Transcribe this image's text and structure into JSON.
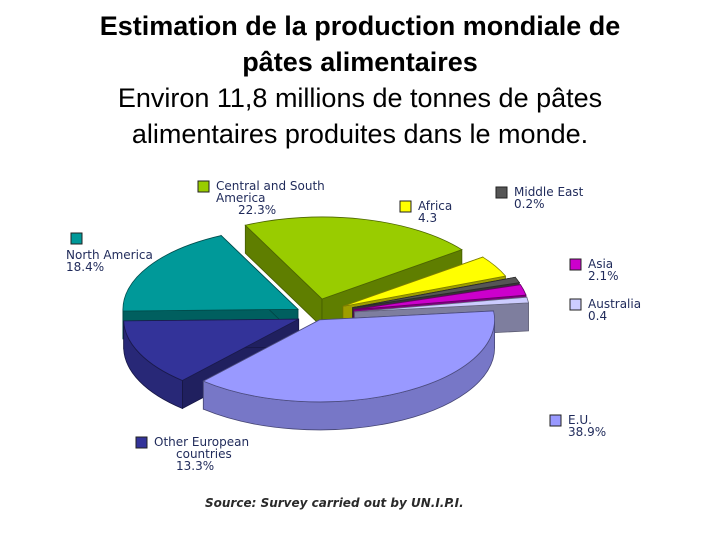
{
  "heading": {
    "title_line1": "Estimation de la production mondiale de",
    "title_line2": "pâtes alimentaires",
    "subtitle_line1": "Environ 11,8 millions de tonnes de pâtes",
    "subtitle_line2": "alimentaires produites dans le monde."
  },
  "chart_data": {
    "type": "pie",
    "style": "3d-exploded",
    "slices": [
      {
        "name": "Central and South America",
        "label_lines": [
          "Central and South",
          "America",
          "22.3%"
        ],
        "value": 22.3,
        "color": "#99cc00"
      },
      {
        "name": "Africa",
        "label_lines": [
          "Africa",
          "4.3"
        ],
        "value": 4.3,
        "color": "#ffff00"
      },
      {
        "name": "Middle East",
        "label_lines": [
          "Middle East",
          "0.2%"
        ],
        "value": 0.2,
        "color": "#555555"
      },
      {
        "name": "Asia",
        "label_lines": [
          "Asia",
          "2.1%"
        ],
        "value": 2.1,
        "color": "#cc00cc"
      },
      {
        "name": "Australia",
        "label_lines": [
          "Australia",
          "0.4"
        ],
        "value": 0.4,
        "color": "#ccccff"
      },
      {
        "name": "E.U.",
        "label_lines": [
          "E.U.",
          "38.9%"
        ],
        "value": 38.9,
        "color": "#9999ff"
      },
      {
        "name": "Other European countries",
        "label_lines": [
          "Other European",
          "countries",
          "13.3%"
        ],
        "value": 13.3,
        "color": "#333399"
      },
      {
        "name": "North America",
        "label_lines": [
          "North America",
          "18.4%"
        ],
        "value": 18.4,
        "color": "#009999"
      }
    ],
    "source": "Source: Survey carried out by UN.I.P.I.",
    "legend_placement": "around"
  }
}
